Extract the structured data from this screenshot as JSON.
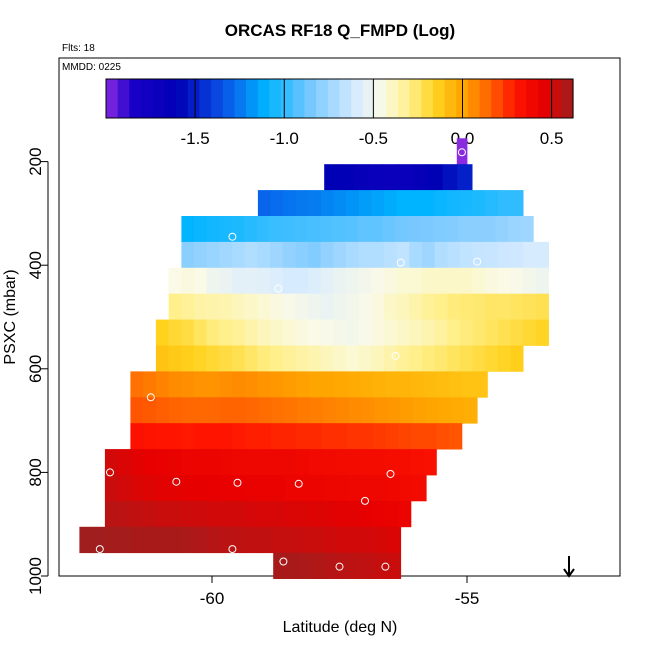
{
  "chart_data": {
    "type": "heatmap",
    "title": "ORCAS RF18 Q_FMPD (Log)",
    "subtitle_flts": "Flts: 18",
    "subtitle_mmdd": "MMDD: 0225",
    "xlabel": "Latitude (deg N)",
    "ylabel": "PSXC (mbar)",
    "xlim": [
      -63.0,
      -52.0
    ],
    "ylim": [
      1000,
      0
    ],
    "xticks": [
      "-60",
      "-55"
    ],
    "xtick_values": [
      -60,
      -55
    ],
    "yticks": [
      "200",
      "400",
      "600",
      "800",
      "1000"
    ],
    "ytick_values": [
      200,
      400,
      600,
      800,
      1000
    ],
    "colorbar": {
      "range": [
        -2.0,
        0.62
      ],
      "ticks": [
        "-1.5",
        "-1.0",
        "-0.5",
        "0.0",
        "0.5"
      ],
      "tick_values": [
        -1.5,
        -1.0,
        -0.5,
        0.0,
        0.5
      ],
      "stops": [
        {
          "v": -2.0,
          "c": "#8a2be2"
        },
        {
          "v": -1.85,
          "c": "#1a00c8"
        },
        {
          "v": -1.6,
          "c": "#0000b4"
        },
        {
          "v": -1.35,
          "c": "#0a50e6"
        },
        {
          "v": -1.1,
          "c": "#00b4ff"
        },
        {
          "v": -0.85,
          "c": "#78c8ff"
        },
        {
          "v": -0.6,
          "c": "#d7ebff"
        },
        {
          "v": -0.45,
          "c": "#fafae6"
        },
        {
          "v": -0.3,
          "c": "#fff08c"
        },
        {
          "v": -0.15,
          "c": "#ffd21e"
        },
        {
          "v": 0.0,
          "c": "#ffa500"
        },
        {
          "v": 0.15,
          "c": "#ff6400"
        },
        {
          "v": 0.3,
          "c": "#ff1400"
        },
        {
          "v": 0.45,
          "c": "#e60000"
        },
        {
          "v": 0.62,
          "c": "#a01e1e"
        }
      ]
    },
    "rows": [
      {
        "p": 180,
        "lat_min": -55.2,
        "lat_max": -55.0,
        "values": [
          -2.0
        ]
      },
      {
        "p": 230,
        "lat_min": -57.8,
        "lat_max": -54.9,
        "values": [
          -1.6,
          -1.62,
          -1.66,
          -1.68,
          -1.7,
          -1.68,
          -1.65,
          -1.6,
          -1.55,
          -1.5
        ]
      },
      {
        "p": 280,
        "lat_min": -59.1,
        "lat_max": -53.9,
        "values": [
          -1.3,
          -1.28,
          -1.26,
          -1.25,
          -1.24,
          -1.22,
          -1.2,
          -1.18,
          -1.16,
          -1.14,
          -1.12,
          -1.1,
          -1.1,
          -1.1,
          -1.08,
          -1.06,
          -1.05,
          -1.04,
          -1.02,
          -1.0,
          -1.0
        ]
      },
      {
        "p": 330,
        "lat_min": -60.6,
        "lat_max": -53.7,
        "values": [
          -1.1,
          -1.08,
          -1.06,
          -1.05,
          -1.04,
          -1.02,
          -1.0,
          -0.98,
          -0.97,
          -0.96,
          -0.95,
          -0.94,
          -0.93,
          -0.92,
          -0.9,
          -0.9,
          -0.88,
          -0.86,
          -0.85,
          -0.84,
          -0.83,
          -0.82,
          -0.8,
          -0.8,
          -0.8,
          -0.78,
          -0.76,
          -0.75
        ]
      },
      {
        "p": 380,
        "lat_min": -60.6,
        "lat_max": -53.4,
        "values": [
          -0.8,
          -0.78,
          -0.76,
          -0.74,
          -0.72,
          -0.7,
          -0.72,
          -0.75,
          -0.78,
          -0.8,
          -0.82,
          -0.78,
          -0.75,
          -0.72,
          -0.7,
          -0.7,
          -0.68,
          -0.66,
          -0.72,
          -0.75,
          -0.7,
          -0.68,
          -0.66,
          -0.65,
          -0.64,
          -0.63,
          -0.62,
          -0.6,
          -0.6
        ]
      },
      {
        "p": 430,
        "lat_min": -60.85,
        "lat_max": -53.4,
        "values": [
          -0.45,
          -0.44,
          -0.45,
          -0.5,
          -0.52,
          -0.55,
          -0.55,
          -0.56,
          -0.58,
          -0.6,
          -0.6,
          -0.58,
          -0.55,
          -0.52,
          -0.5,
          -0.48,
          -0.46,
          -0.44,
          -0.42,
          -0.42,
          -0.4,
          -0.4,
          -0.4,
          -0.4,
          -0.42,
          -0.44,
          -0.45,
          -0.46,
          -0.48,
          -0.5
        ]
      },
      {
        "p": 480,
        "lat_min": -60.85,
        "lat_max": -53.4,
        "values": [
          -0.3,
          -0.32,
          -0.34,
          -0.35,
          -0.36,
          -0.38,
          -0.4,
          -0.42,
          -0.44,
          -0.46,
          -0.48,
          -0.5,
          -0.52,
          -0.5,
          -0.48,
          -0.46,
          -0.44,
          -0.4,
          -0.38,
          -0.35,
          -0.32,
          -0.3,
          -0.28,
          -0.27,
          -0.26,
          -0.25,
          -0.25,
          -0.24,
          -0.23,
          -0.22
        ]
      },
      {
        "p": 530,
        "lat_min": -61.1,
        "lat_max": -53.4,
        "values": [
          -0.15,
          -0.18,
          -0.2,
          -0.24,
          -0.28,
          -0.3,
          -0.32,
          -0.35,
          -0.38,
          -0.4,
          -0.42,
          -0.44,
          -0.45,
          -0.46,
          -0.47,
          -0.48,
          -0.46,
          -0.44,
          -0.42,
          -0.4,
          -0.38,
          -0.36,
          -0.33,
          -0.3,
          -0.28,
          -0.26,
          -0.24,
          -0.22,
          -0.2,
          -0.18,
          -0.16
        ]
      },
      {
        "p": 580,
        "lat_min": -61.1,
        "lat_max": -53.9,
        "values": [
          -0.1,
          -0.12,
          -0.14,
          -0.16,
          -0.18,
          -0.2,
          -0.22,
          -0.25,
          -0.28,
          -0.3,
          -0.32,
          -0.34,
          -0.36,
          -0.38,
          -0.4,
          -0.42,
          -0.4,
          -0.38,
          -0.35,
          -0.32,
          -0.3,
          -0.28,
          -0.26,
          -0.24,
          -0.22,
          -0.2,
          -0.18,
          -0.16,
          -0.14
        ]
      },
      {
        "p": 630,
        "lat_min": -61.6,
        "lat_max": -54.6,
        "values": [
          0.12,
          0.1,
          0.08,
          0.06,
          0.05,
          0.04,
          0.04,
          0.05,
          0.06,
          0.05,
          0.04,
          0.03,
          0.02,
          0.01,
          0.0,
          0.0,
          -0.01,
          -0.02,
          -0.03,
          -0.04,
          -0.05,
          -0.05,
          -0.06,
          -0.07,
          -0.08,
          -0.09,
          -0.1,
          -0.1
        ]
      },
      {
        "p": 680,
        "lat_min": -61.6,
        "lat_max": -54.8,
        "values": [
          0.18,
          0.17,
          0.16,
          0.15,
          0.14,
          0.14,
          0.14,
          0.15,
          0.15,
          0.14,
          0.13,
          0.12,
          0.11,
          0.1,
          0.09,
          0.08,
          0.07,
          0.06,
          0.05,
          0.04,
          0.03,
          0.02,
          0.01,
          0.0,
          -0.01,
          -0.02,
          -0.03
        ]
      },
      {
        "p": 730,
        "lat_min": -61.6,
        "lat_max": -55.1,
        "values": [
          0.32,
          0.31,
          0.3,
          0.3,
          0.29,
          0.3,
          0.3,
          0.3,
          0.29,
          0.28,
          0.28,
          0.27,
          0.27,
          0.26,
          0.26,
          0.25,
          0.25,
          0.24,
          0.24,
          0.23,
          0.22,
          0.21,
          0.2,
          0.2,
          0.19,
          0.18
        ]
      },
      {
        "p": 780,
        "lat_min": -62.1,
        "lat_max": -55.6,
        "values": [
          0.5,
          0.48,
          0.46,
          0.45,
          0.44,
          0.43,
          0.42,
          0.42,
          0.42,
          0.41,
          0.4,
          0.4,
          0.4,
          0.4,
          0.4,
          0.39,
          0.38,
          0.38,
          0.37,
          0.37,
          0.36,
          0.36,
          0.35,
          0.35,
          0.34,
          0.33
        ]
      },
      {
        "p": 830,
        "lat_min": -62.1,
        "lat_max": -55.8,
        "values": [
          0.52,
          0.5,
          0.48,
          0.47,
          0.46,
          0.46,
          0.45,
          0.45,
          0.45,
          0.44,
          0.44,
          0.43,
          0.43,
          0.43,
          0.42,
          0.42,
          0.42,
          0.41,
          0.41,
          0.4,
          0.4,
          0.4,
          0.39,
          0.38,
          0.37
        ]
      },
      {
        "p": 880,
        "lat_min": -62.1,
        "lat_max": -56.1,
        "values": [
          0.56,
          0.55,
          0.54,
          0.53,
          0.52,
          0.52,
          0.51,
          0.51,
          0.5,
          0.5,
          0.5,
          0.49,
          0.49,
          0.49,
          0.48,
          0.48,
          0.47,
          0.47,
          0.46,
          0.46,
          0.45,
          0.44,
          0.43,
          0.42
        ]
      },
      {
        "p": 930,
        "lat_min": -62.6,
        "lat_max": -56.3,
        "values": [
          0.62,
          0.62,
          0.61,
          0.61,
          0.6,
          0.6,
          0.6,
          0.6,
          0.59,
          0.58,
          0.57,
          0.56,
          0.55,
          0.54,
          0.54,
          0.53,
          0.53,
          0.52,
          0.52,
          0.51,
          0.5,
          0.5,
          0.5,
          0.49,
          0.48
        ]
      },
      {
        "p": 980,
        "lat_min": -58.8,
        "lat_max": -56.3,
        "values": [
          0.6,
          0.6,
          0.59,
          0.58,
          0.57,
          0.56,
          0.55,
          0.54,
          0.53,
          0.52
        ]
      }
    ],
    "markers": [
      {
        "lat": -55.1,
        "p": 182
      },
      {
        "lat": -53.6,
        "p": 305
      },
      {
        "lat": -59.6,
        "p": 345
      },
      {
        "lat": -56.3,
        "p": 395
      },
      {
        "lat": -54.8,
        "p": 393
      },
      {
        "lat": -58.7,
        "p": 445
      },
      {
        "lat": -53.1,
        "p": 470
      },
      {
        "lat": -56.4,
        "p": 575
      },
      {
        "lat": -53.5,
        "p": 565
      },
      {
        "lat": -61.2,
        "p": 655
      },
      {
        "lat": -62.0,
        "p": 800
      },
      {
        "lat": -60.7,
        "p": 818
      },
      {
        "lat": -59.5,
        "p": 820
      },
      {
        "lat": -58.3,
        "p": 822
      },
      {
        "lat": -56.5,
        "p": 803
      },
      {
        "lat": -57.0,
        "p": 855
      },
      {
        "lat": -62.2,
        "p": 948
      },
      {
        "lat": -59.6,
        "p": 948
      },
      {
        "lat": -58.6,
        "p": 972
      },
      {
        "lat": -57.5,
        "p": 982
      },
      {
        "lat": -56.6,
        "p": 982
      }
    ],
    "arrow": {
      "lat": -53.0,
      "p": 1000,
      "direction": "down"
    },
    "grid": false,
    "legend_placement": "top"
  }
}
